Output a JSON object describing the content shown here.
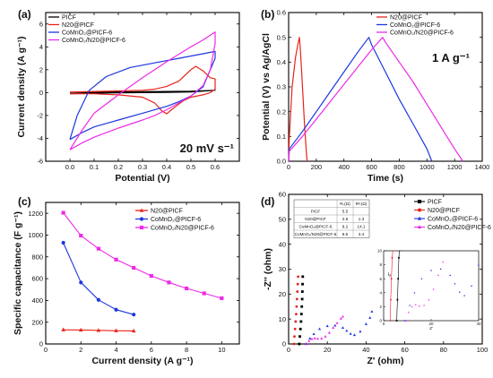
{
  "chart_data": [
    {
      "panel": "(a)",
      "type": "line",
      "title": "",
      "xlabel": "Potential (V)",
      "ylabel": "Current density (A g⁻¹)",
      "xlim": [
        -0.1,
        0.7
      ],
      "ylim": [
        -6,
        7
      ],
      "xticks": [
        "0.0",
        "0.1",
        "0.2",
        "0.3",
        "0.4",
        "0.5",
        "0.6"
      ],
      "yticks": [
        "-6",
        "-4",
        "-2",
        "0",
        "2",
        "4",
        "6"
      ],
      "annotation": "20 mV s⁻¹",
      "legend_position": "top-left",
      "series": [
        {
          "name": "PICF",
          "color": "#000000",
          "x": [
            0.0,
            0.1,
            0.2,
            0.3,
            0.4,
            0.5,
            0.6,
            0.5,
            0.4,
            0.3,
            0.2,
            0.1,
            0.0
          ],
          "y": [
            0.02,
            0.04,
            0.06,
            0.08,
            0.1,
            0.12,
            0.2,
            0.05,
            0.02,
            0.0,
            -0.02,
            -0.05,
            -0.1
          ]
        },
        {
          "name": "N20@PICF",
          "color": "#e8231a",
          "x": [
            0.0,
            0.1,
            0.2,
            0.3,
            0.35,
            0.4,
            0.45,
            0.5,
            0.52,
            0.55,
            0.58,
            0.6,
            0.6,
            0.58,
            0.55,
            0.5,
            0.47,
            0.45,
            0.42,
            0.4,
            0.38,
            0.35,
            0.3,
            0.2,
            0.1,
            0.0
          ],
          "y": [
            0.05,
            0.1,
            0.15,
            0.2,
            0.3,
            0.55,
            1.0,
            2.0,
            2.3,
            1.9,
            1.3,
            1.2,
            0.3,
            0.0,
            -0.2,
            -0.4,
            -0.7,
            -1.0,
            -1.5,
            -1.85,
            -1.6,
            -0.9,
            -0.4,
            -0.2,
            -0.1,
            -0.1
          ]
        },
        {
          "name": "CoMnO₂@PICF-6",
          "color": "#1d36e0",
          "x": [
            0.0,
            0.03,
            0.08,
            0.15,
            0.25,
            0.35,
            0.45,
            0.55,
            0.6,
            0.6,
            0.55,
            0.5,
            0.45,
            0.4,
            0.3,
            0.2,
            0.1,
            0.05,
            0.0
          ],
          "y": [
            -4.1,
            -2.0,
            0.2,
            1.4,
            2.2,
            2.6,
            3.0,
            3.4,
            3.6,
            3.0,
            0.5,
            -0.3,
            -0.8,
            -1.2,
            -1.8,
            -2.4,
            -3.0,
            -3.5,
            -4.1
          ]
        },
        {
          "name": "CoMnO₂/N20@PICF-6",
          "color": "#ee2ae8",
          "x": [
            0.0,
            0.05,
            0.1,
            0.2,
            0.3,
            0.4,
            0.5,
            0.55,
            0.6,
            0.6,
            0.58,
            0.55,
            0.5,
            0.45,
            0.4,
            0.35,
            0.3,
            0.2,
            0.1,
            0.05,
            0.0
          ],
          "y": [
            -5.0,
            -3.3,
            -1.8,
            -0.2,
            1.3,
            2.7,
            4.0,
            4.6,
            5.3,
            4.3,
            2.0,
            0.6,
            -0.3,
            -0.9,
            -1.5,
            -2.0,
            -2.4,
            -3.1,
            -3.9,
            -4.4,
            -5.0
          ]
        }
      ]
    },
    {
      "panel": "(b)",
      "type": "line",
      "title": "",
      "xlabel": "Time (s)",
      "ylabel": "Potential (V) vs Ag/AgCl",
      "xlim": [
        0,
        1400
      ],
      "ylim": [
        0,
        0.6
      ],
      "xticks": [
        "0",
        "200",
        "400",
        "600",
        "800",
        "1000",
        "1200",
        "1400"
      ],
      "yticks": [
        "0.0",
        "0.1",
        "0.2",
        "0.3",
        "0.4",
        "0.5",
        "0.6"
      ],
      "annotation": "1 A g⁻¹",
      "legend_position": "top-right",
      "series": [
        {
          "name": "N20@PICF",
          "color": "#e8231a",
          "x": [
            0,
            5,
            25,
            50,
            70,
            78,
            85,
            95,
            105,
            115,
            130,
            135
          ],
          "y": [
            0.0,
            0.1,
            0.3,
            0.42,
            0.48,
            0.5,
            0.45,
            0.35,
            0.25,
            0.15,
            0.02,
            0.0
          ]
        },
        {
          "name": "CoMnO₂@PICF-6",
          "color": "#1d36e0",
          "x": [
            0,
            5,
            100,
            200,
            300,
            400,
            500,
            580,
            600,
            700,
            800,
            900,
            1000,
            1035
          ],
          "y": [
            0.0,
            0.05,
            0.12,
            0.2,
            0.28,
            0.36,
            0.44,
            0.5,
            0.47,
            0.36,
            0.25,
            0.15,
            0.05,
            0.0
          ]
        },
        {
          "name": "CoMnO₂/N20@PICF-6",
          "color": "#ee2ae8",
          "x": [
            0,
            5,
            100,
            200,
            300,
            400,
            500,
            600,
            680,
            700,
            800,
            900,
            1000,
            1100,
            1200,
            1260
          ],
          "y": [
            0.0,
            0.04,
            0.1,
            0.17,
            0.24,
            0.31,
            0.38,
            0.45,
            0.5,
            0.48,
            0.4,
            0.32,
            0.23,
            0.14,
            0.05,
            0.0
          ]
        }
      ]
    },
    {
      "panel": "(c)",
      "type": "line",
      "title": "",
      "xlabel": "Current density (A g⁻¹)",
      "ylabel": "Specific capacitance (F g⁻¹)",
      "xlim": [
        0,
        11
      ],
      "ylim": [
        0,
        1300
      ],
      "xticks": [
        "0",
        "2",
        "4",
        "6",
        "8",
        "10"
      ],
      "yticks": [
        "0",
        "200",
        "400",
        "600",
        "800",
        "1000",
        "1200"
      ],
      "legend_position": "top-right",
      "series": [
        {
          "name": "N20@PICF",
          "color": "#e8231a",
          "marker": "triangle",
          "x": [
            1,
            2,
            3,
            4,
            5
          ],
          "y": [
            130,
            128,
            125,
            122,
            120
          ]
        },
        {
          "name": "CoMnO₂@PICF-6",
          "color": "#1d36e0",
          "marker": "circle",
          "x": [
            1,
            2,
            3,
            4,
            5
          ],
          "y": [
            930,
            565,
            405,
            315,
            270
          ]
        },
        {
          "name": "CoMnO₂/N20@PICF-6",
          "color": "#ee2ae8",
          "marker": "square",
          "x": [
            1,
            2,
            3,
            4,
            5,
            6,
            7,
            8,
            9,
            10
          ],
          "y": [
            1205,
            995,
            875,
            775,
            700,
            625,
            565,
            510,
            465,
            420
          ]
        }
      ]
    },
    {
      "panel": "(d)",
      "type": "scatter",
      "title": "",
      "xlabel": "Z' (ohm)",
      "ylabel": "-Z'' (ohm)",
      "xlim": [
        0,
        100
      ],
      "ylim": [
        0,
        60
      ],
      "xticks": [
        "0",
        "20",
        "40",
        "60",
        "80",
        "100"
      ],
      "yticks": [
        "0",
        "10",
        "20",
        "30",
        "40",
        "50",
        "60"
      ],
      "legend_position": "top-right",
      "table": {
        "headers": [
          "",
          "Rₛ(Ω)",
          "Rᶜₜ(Ω)"
        ],
        "rows": [
          [
            "PICF",
            "5.5",
            ""
          ],
          [
            "N20@PICF",
            "2.8",
            "1.3"
          ],
          [
            "CoMnO₂@PICF-6",
            "9.2",
            "14.1"
          ],
          [
            "CoMnO₂/N20@PICF-6",
            "9.5",
            "3.4"
          ]
        ]
      },
      "inset": {
        "xticks": [
          "0",
          "20",
          "40"
        ],
        "yticks": [
          "0",
          "2",
          "4",
          "6",
          "8",
          "10"
        ],
        "xlabel": "Z'",
        "ylabel": "-Z''"
      },
      "series": [
        {
          "name": "PICF",
          "color": "#000000",
          "marker": "square",
          "x": [
            5.5,
            5.8,
            6.1,
            6.4,
            6.6,
            6.8,
            7.0,
            7.1,
            7.2,
            7.3
          ],
          "y": [
            0,
            3,
            6,
            9,
            12,
            15,
            18,
            21,
            24,
            27
          ]
        },
        {
          "name": "N20@PICF",
          "color": "#e8231a",
          "marker": "circle",
          "x": [
            2.8,
            3.0,
            3.3,
            3.6,
            3.9,
            4.1,
            4.3,
            4.5,
            4.7,
            4.9
          ],
          "y": [
            0,
            3,
            6,
            9,
            12,
            15,
            18,
            21,
            24,
            27
          ]
        },
        {
          "name": "CoMnO₂@PICF-6",
          "color": "#1d36e0",
          "marker": "triangle",
          "x": [
            9,
            11,
            13,
            16,
            20,
            24,
            28,
            30,
            32,
            34,
            37,
            40,
            42,
            43
          ],
          "y": [
            0,
            2.2,
            4,
            6,
            7.2,
            7.4,
            6.5,
            5.3,
            4.1,
            3.6,
            5,
            8,
            10.5,
            13
          ]
        },
        {
          "name": "CoMnO₂/N20@PICF-6",
          "color": "#ee2ae8",
          "marker": "triangle",
          "x": [
            9.5,
            10.5,
            12,
            13.5,
            15,
            17,
            19,
            21,
            23,
            25,
            27,
            28
          ],
          "y": [
            0,
            1.2,
            2,
            2.3,
            2.1,
            2.2,
            3,
            4.5,
            6.5,
            8.4,
            10.2,
            11
          ]
        }
      ]
    }
  ]
}
